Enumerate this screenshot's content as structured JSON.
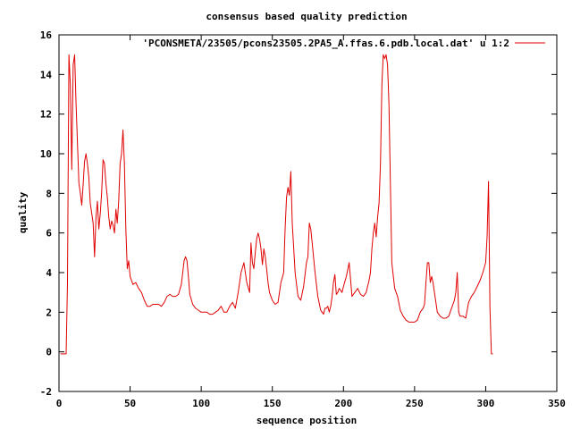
{
  "chart_data": {
    "type": "line",
    "title": "consensus based quality prediction",
    "xlabel": "sequence position",
    "ylabel": "quality",
    "xlim": [
      0,
      350
    ],
    "ylim": [
      -2,
      16
    ],
    "xticks": [
      0,
      50,
      100,
      150,
      200,
      250,
      300,
      350
    ],
    "yticks": [
      -2,
      0,
      2,
      4,
      6,
      8,
      10,
      12,
      14,
      16
    ],
    "legend_position": "top-right",
    "grid": false,
    "series": [
      {
        "name": "'PCONSMETA/23505/pcons23505.2PA5_A.ffas.6.pdb.local.dat' u 1:2",
        "color": "#e00000",
        "x": [
          1,
          5,
          6,
          7,
          8,
          9,
          10,
          11,
          12,
          13,
          14,
          15,
          16,
          17,
          18,
          19,
          20,
          21,
          22,
          23,
          24,
          25,
          26,
          27,
          28,
          29,
          30,
          31,
          32,
          33,
          34,
          35,
          36,
          37,
          38,
          39,
          40,
          41,
          42,
          43,
          44,
          45,
          46,
          47,
          48,
          49,
          50,
          52,
          54,
          56,
          58,
          60,
          62,
          64,
          66,
          68,
          70,
          72,
          74,
          76,
          78,
          80,
          82,
          84,
          86,
          88,
          89,
          90,
          91,
          92,
          94,
          96,
          98,
          100,
          102,
          104,
          106,
          108,
          110,
          112,
          114,
          116,
          118,
          120,
          122,
          124,
          126,
          128,
          130,
          132,
          134,
          135,
          136,
          137,
          138,
          139,
          140,
          141,
          142,
          143,
          144,
          145,
          146,
          147,
          148,
          150,
          152,
          154,
          156,
          158,
          159,
          160,
          161,
          162,
          163,
          164,
          166,
          168,
          170,
          172,
          173,
          174,
          175,
          176,
          177,
          178,
          180,
          182,
          184,
          186,
          187,
          188,
          189,
          190,
          191,
          192,
          193,
          194,
          195,
          196,
          197,
          198,
          199,
          200,
          202,
          204,
          206,
          208,
          210,
          212,
          214,
          216,
          217,
          218,
          219,
          220,
          221,
          222,
          223,
          224,
          225,
          226,
          227,
          228,
          229,
          230,
          231,
          232,
          233,
          234,
          236,
          238,
          240,
          242,
          244,
          246,
          248,
          250,
          252,
          254,
          256,
          257,
          258,
          259,
          260,
          261,
          262,
          263,
          264,
          266,
          268,
          270,
          272,
          274,
          276,
          278,
          279,
          280,
          281,
          282,
          284,
          286,
          288,
          290,
          292,
          294,
          296,
          298,
          300,
          301,
          302,
          303,
          304,
          305
        ],
        "values": [
          -0.1,
          -0.1,
          3.5,
          15.0,
          13.5,
          9.2,
          14.5,
          15.0,
          12.5,
          10.5,
          8.5,
          8.0,
          7.4,
          8.5,
          9.6,
          10.0,
          9.5,
          8.8,
          7.5,
          7.0,
          6.5,
          4.8,
          6.8,
          7.6,
          6.2,
          7.0,
          8.0,
          9.7,
          9.5,
          8.5,
          7.8,
          6.8,
          6.2,
          6.6,
          6.4,
          6.0,
          7.2,
          6.5,
          7.6,
          9.5,
          10.0,
          11.2,
          9.5,
          6.2,
          4.2,
          4.6,
          3.8,
          3.4,
          3.5,
          3.2,
          3.0,
          2.6,
          2.3,
          2.3,
          2.4,
          2.4,
          2.4,
          2.3,
          2.5,
          2.8,
          2.9,
          2.8,
          2.8,
          2.9,
          3.4,
          4.6,
          4.8,
          4.6,
          3.8,
          2.9,
          2.4,
          2.2,
          2.1,
          2.0,
          2.0,
          2.0,
          1.9,
          1.9,
          2.0,
          2.1,
          2.3,
          2.0,
          2.0,
          2.3,
          2.5,
          2.2,
          3.0,
          4.0,
          4.5,
          3.5,
          3.0,
          5.5,
          4.5,
          4.2,
          5.0,
          5.7,
          6.0,
          5.7,
          5.2,
          4.4,
          5.2,
          4.8,
          4.2,
          3.5,
          3.0,
          2.6,
          2.4,
          2.5,
          3.5,
          4.0,
          6.2,
          7.8,
          8.3,
          7.9,
          9.1,
          6.5,
          4.0,
          2.8,
          2.6,
          3.3,
          3.9,
          4.5,
          4.8,
          6.5,
          6.2,
          5.5,
          4.0,
          2.8,
          2.1,
          1.9,
          2.2,
          2.2,
          2.3,
          2.0,
          2.3,
          2.8,
          3.5,
          3.9,
          2.9,
          3.0,
          3.2,
          3.1,
          3.0,
          3.3,
          3.8,
          4.5,
          2.8,
          3.0,
          3.2,
          2.9,
          2.8,
          3.0,
          3.3,
          3.6,
          4.0,
          5.2,
          6.0,
          6.5,
          5.8,
          6.8,
          7.5,
          9.5,
          13.5,
          15.0,
          14.8,
          15.0,
          14.5,
          12.5,
          8.5,
          4.5,
          3.2,
          2.8,
          2.1,
          1.8,
          1.6,
          1.5,
          1.5,
          1.5,
          1.6,
          2.0,
          2.2,
          2.4,
          3.5,
          4.5,
          4.5,
          3.5,
          3.8,
          3.5,
          3.0,
          2.0,
          1.8,
          1.7,
          1.7,
          1.8,
          2.2,
          2.6,
          3.0,
          4.0,
          2.0,
          1.8,
          1.8,
          1.7,
          2.5,
          2.8,
          3.0,
          3.3,
          3.6,
          4.0,
          4.5,
          5.8,
          8.6,
          2.2,
          -0.1,
          -0.1
        ]
      }
    ]
  }
}
